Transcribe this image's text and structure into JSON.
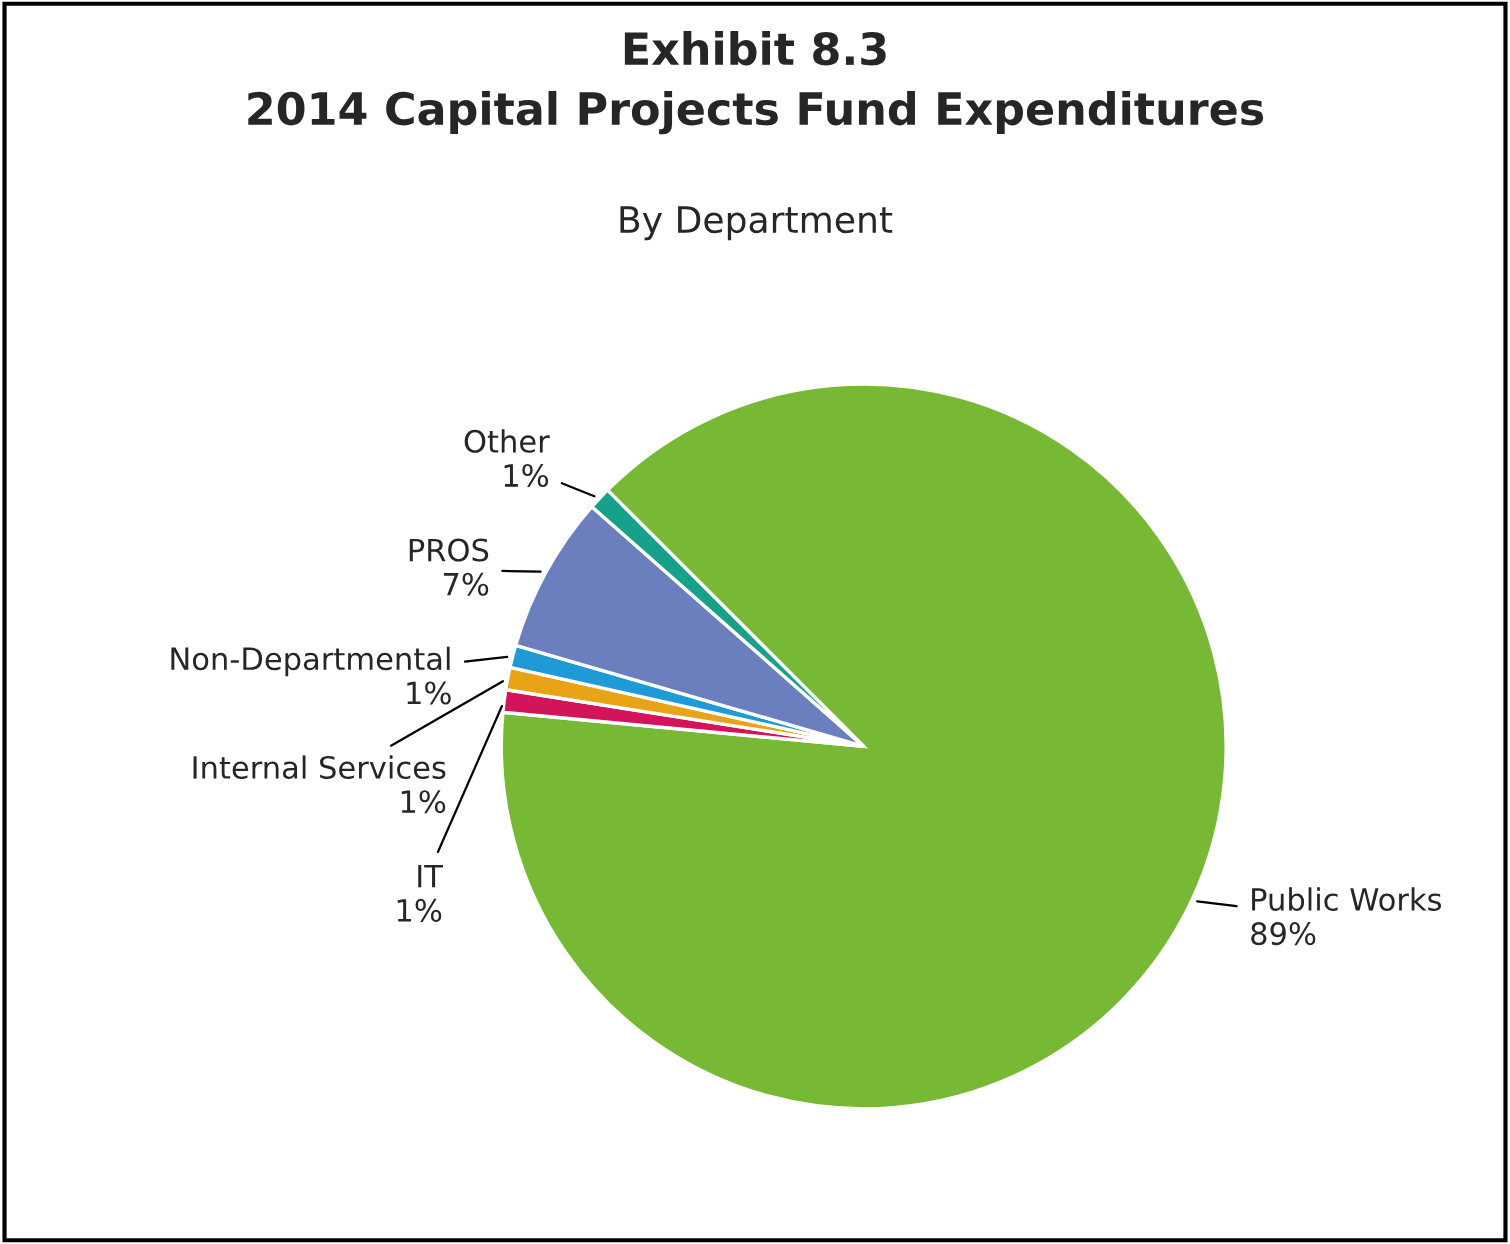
{
  "chart_data": {
    "type": "pie",
    "title": "Exhibit 8.3\n2014 Capital Projects Fund Expenditures",
    "subtitle": "By Department",
    "categories": [
      "Public Works",
      "IT",
      "Internal Services",
      "Non-Departmental",
      "PROS",
      "Other"
    ],
    "values": [
      89,
      1,
      1,
      1,
      7,
      1
    ],
    "colors": [
      "#77b935",
      "#d4145a",
      "#e8a317",
      "#1e9ad6",
      "#6b7fbf",
      "#17a08a"
    ],
    "value_labels": [
      "89%",
      "1%",
      "1%",
      "1%",
      "7%",
      "1%"
    ],
    "legend": false
  }
}
